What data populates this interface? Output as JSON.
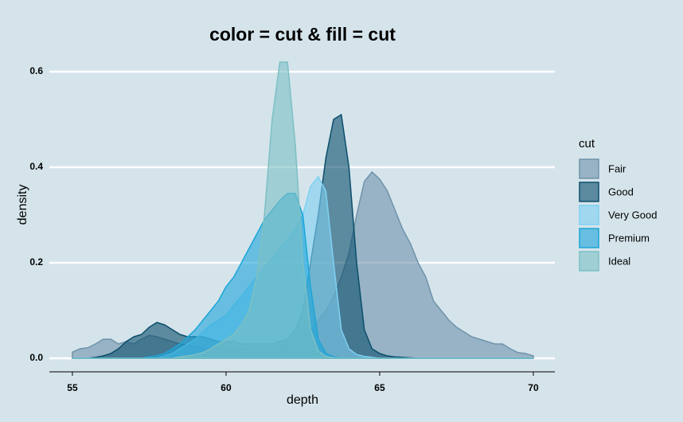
{
  "chart_data": {
    "type": "area",
    "title": "color = cut & fill = cut",
    "x_label": "depth",
    "y_label": "density",
    "legend_title": "cut",
    "x": [
      55,
      55.25,
      55.5,
      55.75,
      56,
      56.25,
      56.5,
      56.75,
      57,
      57.25,
      57.5,
      57.75,
      58,
      58.25,
      58.5,
      58.75,
      59,
      59.25,
      59.5,
      59.75,
      60,
      60.25,
      60.5,
      60.75,
      61,
      61.25,
      61.5,
      61.75,
      62,
      62.25,
      62.5,
      62.75,
      63,
      63.25,
      63.5,
      63.75,
      64,
      64.25,
      64.5,
      64.75,
      65,
      65.25,
      65.5,
      65.75,
      66,
      66.25,
      66.5,
      66.75,
      67,
      67.25,
      67.5,
      67.75,
      68,
      68.25,
      68.5,
      68.75,
      69,
      69.25,
      69.5,
      69.75,
      70
    ],
    "series": [
      {
        "name": "Fair",
        "color": "#6f93ab",
        "values": [
          0.013,
          0.02,
          0.022,
          0.03,
          0.04,
          0.04,
          0.03,
          0.035,
          0.03,
          0.04,
          0.048,
          0.045,
          0.04,
          0.035,
          0.03,
          0.028,
          0.025,
          0.02,
          0.02,
          0.02,
          0.018,
          0.018,
          0.02,
          0.02,
          0.02,
          0.022,
          0.025,
          0.028,
          0.03,
          0.035,
          0.045,
          0.06,
          0.08,
          0.1,
          0.13,
          0.17,
          0.22,
          0.3,
          0.37,
          0.39,
          0.375,
          0.35,
          0.31,
          0.27,
          0.24,
          0.2,
          0.17,
          0.12,
          0.1,
          0.08,
          0.065,
          0.055,
          0.045,
          0.04,
          0.035,
          0.03,
          0.03,
          0.02,
          0.012,
          0.01,
          0.005
        ]
      },
      {
        "name": "Good",
        "color": "#0b4f6c",
        "values": [
          0,
          0,
          0,
          0.002,
          0.005,
          0.01,
          0.02,
          0.035,
          0.045,
          0.05,
          0.065,
          0.075,
          0.07,
          0.06,
          0.05,
          0.045,
          0.045,
          0.045,
          0.04,
          0.035,
          0.035,
          0.035,
          0.03,
          0.03,
          0.03,
          0.03,
          0.03,
          0.035,
          0.04,
          0.06,
          0.1,
          0.2,
          0.3,
          0.42,
          0.5,
          0.51,
          0.4,
          0.2,
          0.06,
          0.02,
          0.01,
          0.005,
          0.003,
          0.002,
          0.001,
          0,
          0,
          0,
          0,
          0,
          0,
          0,
          0,
          0,
          0,
          0,
          0,
          0,
          0,
          0,
          0
        ]
      },
      {
        "name": "Very Good",
        "color": "#7fd0f2",
        "values": [
          0,
          0,
          0,
          0,
          0,
          0,
          0,
          0,
          0,
          0,
          0,
          0,
          0.005,
          0.01,
          0.02,
          0.03,
          0.04,
          0.055,
          0.07,
          0.08,
          0.09,
          0.11,
          0.13,
          0.15,
          0.17,
          0.19,
          0.21,
          0.23,
          0.25,
          0.27,
          0.3,
          0.36,
          0.38,
          0.35,
          0.2,
          0.06,
          0.02,
          0.008,
          0.004,
          0.002,
          0,
          0,
          0,
          0,
          0,
          0,
          0,
          0,
          0,
          0,
          0,
          0,
          0,
          0,
          0,
          0,
          0,
          0,
          0,
          0,
          0
        ]
      },
      {
        "name": "Premium",
        "color": "#1ea5d8",
        "values": [
          0,
          0,
          0,
          0,
          0,
          0,
          0,
          0,
          0,
          0,
          0.003,
          0.005,
          0.01,
          0.02,
          0.03,
          0.045,
          0.06,
          0.08,
          0.1,
          0.12,
          0.15,
          0.17,
          0.2,
          0.23,
          0.26,
          0.29,
          0.31,
          0.33,
          0.345,
          0.345,
          0.3,
          0.15,
          0.04,
          0.01,
          0.003,
          0,
          0,
          0,
          0,
          0,
          0,
          0,
          0,
          0,
          0,
          0,
          0,
          0,
          0,
          0,
          0,
          0,
          0,
          0,
          0,
          0,
          0,
          0,
          0,
          0,
          0
        ]
      },
      {
        "name": "Ideal",
        "color": "#7cc0c4",
        "values": [
          0,
          0,
          0,
          0,
          0,
          0,
          0,
          0,
          0,
          0,
          0,
          0,
          0,
          0,
          0.003,
          0.005,
          0.008,
          0.012,
          0.02,
          0.03,
          0.04,
          0.05,
          0.07,
          0.1,
          0.17,
          0.3,
          0.5,
          0.62,
          0.62,
          0.45,
          0.2,
          0.06,
          0.015,
          0.004,
          0.001,
          0,
          0,
          0,
          0,
          0,
          0,
          0,
          0,
          0,
          0,
          0,
          0,
          0,
          0,
          0,
          0,
          0,
          0,
          0,
          0,
          0,
          0,
          0,
          0,
          0,
          0
        ]
      }
    ],
    "xlim": [
      54.25,
      70.7
    ],
    "ylim": [
      -0.02,
      0.65
    ],
    "xticks": [
      55,
      60,
      65,
      70
    ],
    "yticks": [
      {
        "value": 0,
        "label": "0.0"
      },
      {
        "value": 0.2,
        "label": "0.2"
      },
      {
        "value": 0.4,
        "label": "0.4"
      },
      {
        "value": 0.6,
        "label": "0.6"
      }
    ],
    "grid": true,
    "legend": "right"
  }
}
